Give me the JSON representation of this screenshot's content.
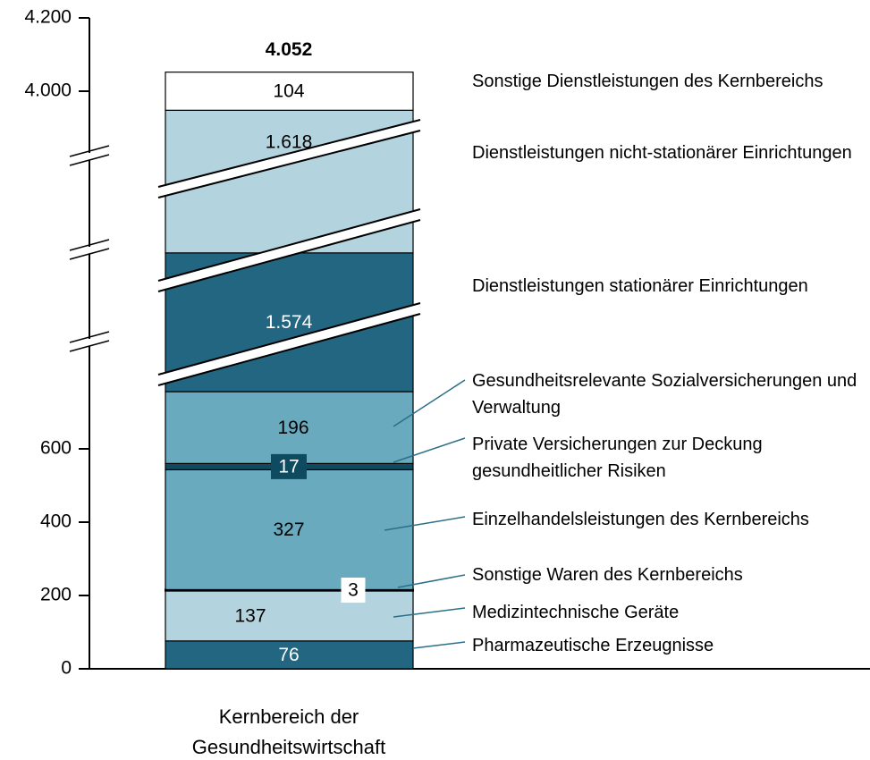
{
  "chart_data": {
    "type": "stacked_bar",
    "categories": [
      "Kernbereich der Gesundheitswirtschaft"
    ],
    "series": [
      {
        "name": "Pharmazeutische Erzeugnisse",
        "color": "#236682",
        "values": [
          76
        ]
      },
      {
        "name": "Medizintechnische Geräte",
        "color": "#b3d4df",
        "values": [
          137
        ]
      },
      {
        "name": "Sonstige Waren des Kernbereichs",
        "color": "#000000",
        "values": [
          3
        ]
      },
      {
        "name": "Einzelhandelsleistungen des Kernbereichs",
        "color": "#6aaabf",
        "values": [
          327
        ]
      },
      {
        "name": "Private Versicherungen zur Deckung gesundheitlicher Risiken",
        "color": "#0e4a60",
        "values": [
          17
        ]
      },
      {
        "name": "Gesundheitsrelevante Sozialversicherungen und Verwaltung",
        "color": "#6aaabf",
        "values": [
          196
        ]
      },
      {
        "name": "Dienstleistungen stationärer Einrichtungen",
        "color": "#236682",
        "values": [
          1574
        ],
        "value_labels": [
          "1.574"
        ]
      },
      {
        "name": "Dienstleistungen nicht-stationärer Einrichtungen",
        "color": "#b3d4df",
        "values": [
          1618
        ],
        "value_labels": [
          "1.618"
        ]
      },
      {
        "name": "Sonstige Dienstleistungen des Kernbereichs",
        "color": "#ffffff",
        "values": [
          104
        ]
      }
    ],
    "total": {
      "value": 4052,
      "label": "4.052"
    },
    "ylim": [
      0,
      4200
    ],
    "yticks": [
      0,
      200,
      400,
      600,
      {
        "value": 4000,
        "label": "4.000"
      },
      {
        "value": 4200,
        "label": "4.200"
      }
    ],
    "axis_break": true
  }
}
